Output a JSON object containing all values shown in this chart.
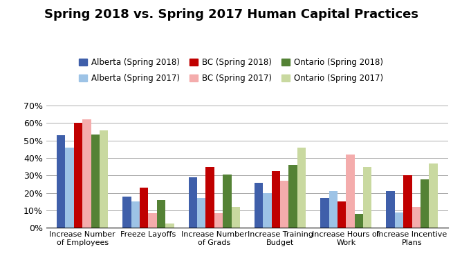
{
  "title": "Spring 2018 vs. Spring 2017 Human Capital Practices",
  "categories": [
    "Increase Number\nof Employees",
    "Freeze Layoffs",
    "Increase Number\nof Grads",
    "Increase Training\nBudget",
    "Increase Hours of\nWork",
    "Increase Incentive\nPlans"
  ],
  "series": [
    {
      "label": "Alberta (Spring 2018)",
      "color": "#3F5FAA",
      "values": [
        0.53,
        0.18,
        0.29,
        0.26,
        0.17,
        0.21
      ]
    },
    {
      "label": "Alberta (Spring 2017)",
      "color": "#9DC3E6",
      "values": [
        0.46,
        0.15,
        0.17,
        0.2,
        0.21,
        0.09
      ]
    },
    {
      "label": "BC (Spring 2018)",
      "color": "#C00000",
      "values": [
        0.6,
        0.23,
        0.35,
        0.325,
        0.15,
        0.3
      ]
    },
    {
      "label": "BC (Spring 2017)",
      "color": "#F4ACAC",
      "values": [
        0.62,
        0.085,
        0.085,
        0.27,
        0.42,
        0.12
      ]
    },
    {
      "label": "Ontario (Spring 2018)",
      "color": "#548235",
      "values": [
        0.535,
        0.16,
        0.305,
        0.36,
        0.08,
        0.28
      ]
    },
    {
      "label": "Ontario (Spring 2017)",
      "color": "#C9D9A0",
      "values": [
        0.56,
        0.025,
        0.12,
        0.46,
        0.35,
        0.37
      ]
    }
  ],
  "ylim": [
    0,
    0.7
  ],
  "yticks": [
    0.0,
    0.1,
    0.2,
    0.3,
    0.4,
    0.5,
    0.6,
    0.7
  ],
  "ytick_labels": [
    "0%",
    "10%",
    "20%",
    "30%",
    "40%",
    "50%",
    "60%",
    "70%"
  ],
  "background_color": "#FFFFFF",
  "grid_color": "#AAAAAA"
}
